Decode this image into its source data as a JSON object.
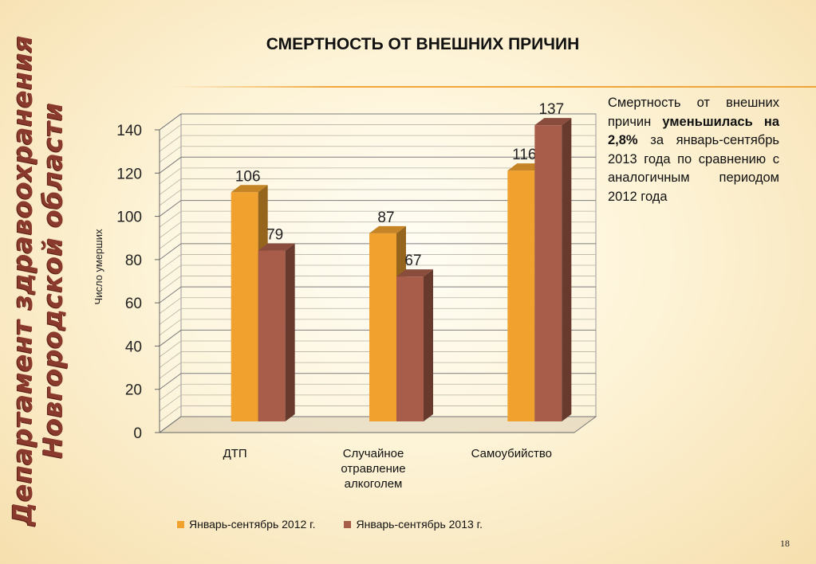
{
  "side_title": {
    "line1": "Департамент здравоохранения",
    "line2": "Новгородской области"
  },
  "page_title": "СМЕРТНОСТЬ ОТ ВНЕШНИХ ПРИЧИН",
  "description": {
    "part1": "Смертность от внешних причин ",
    "bold": "уменьшилась на 2,8%",
    "part2": " за январь-сентябрь 2013 года по сравнению с аналогичным периодом 2012 года"
  },
  "page_number": "18",
  "chart_data": {
    "type": "bar",
    "title": "",
    "xlabel": "",
    "ylabel": "Число умерших",
    "ylim": [
      0,
      140
    ],
    "ytick_step": 20,
    "grid": true,
    "legend_position": "bottom",
    "categories": [
      "ДТП",
      "Случайное отравление алкоголем",
      "Самоубийство"
    ],
    "category_lines": [
      [
        "ДТП"
      ],
      [
        "Случайное",
        "отравление",
        "алкоголем"
      ],
      [
        "Самоубийство"
      ]
    ],
    "series": [
      {
        "name": "Январь-сентябрь 2012 г.",
        "values": [
          106,
          87,
          116
        ],
        "color": "#f0a12e"
      },
      {
        "name": "Январь-сентябрь 2013 г.",
        "values": [
          79,
          67,
          137
        ],
        "color": "#a85d4a"
      }
    ]
  }
}
